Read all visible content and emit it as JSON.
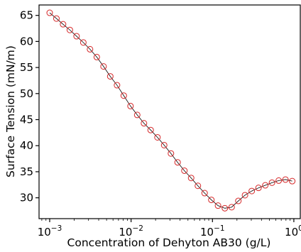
{
  "chart_data": {
    "type": "scatter",
    "title": "",
    "xlabel": "Concentration of Dehyton AB30 (g/L)",
    "ylabel": "Surface Tension (mN/m)",
    "x_scale": "log",
    "xlim": [
      0.00074,
      1.2
    ],
    "ylim": [
      26,
      67
    ],
    "x_ticks": [
      {
        "value": 0.001,
        "base": "10",
        "exp": "−3"
      },
      {
        "value": 0.01,
        "base": "10",
        "exp": "−2"
      },
      {
        "value": 0.1,
        "base": "10",
        "exp": "−1"
      },
      {
        "value": 1,
        "base": "10",
        "exp": "0"
      }
    ],
    "y_ticks": [
      30,
      35,
      40,
      45,
      50,
      55,
      60,
      65
    ],
    "grid": false,
    "legend": "none",
    "colors": {
      "marker": "#d62728",
      "line": "#000000",
      "axis": "#000000"
    },
    "series": [
      {
        "name": "",
        "line": true,
        "x": [
          0.001,
          0.00121,
          0.00146,
          0.00177,
          0.00214,
          0.00259,
          0.00313,
          0.00379,
          0.00459,
          0.00555,
          0.00672,
          0.00813,
          0.00984,
          0.0119,
          0.0144,
          0.0174,
          0.0211,
          0.0255,
          0.0309,
          0.0373,
          0.0452,
          0.0547,
          0.0662,
          0.0801,
          0.0969,
          0.117,
          0.142,
          0.172,
          0.208,
          0.251,
          0.304,
          0.368,
          0.446,
          0.539,
          0.652,
          0.789,
          0.955
        ],
        "y": [
          65.5,
          64.4,
          63.3,
          62.2,
          61.0,
          59.8,
          58.5,
          57.0,
          55.2,
          53.3,
          51.6,
          49.6,
          47.6,
          45.9,
          44.3,
          43.0,
          41.6,
          40.1,
          38.5,
          36.8,
          35.2,
          33.8,
          32.3,
          30.9,
          29.6,
          28.5,
          28.0,
          28.2,
          29.4,
          30.5,
          31.3,
          31.9,
          32.4,
          32.9,
          33.3,
          33.5,
          33.2
        ]
      }
    ]
  }
}
